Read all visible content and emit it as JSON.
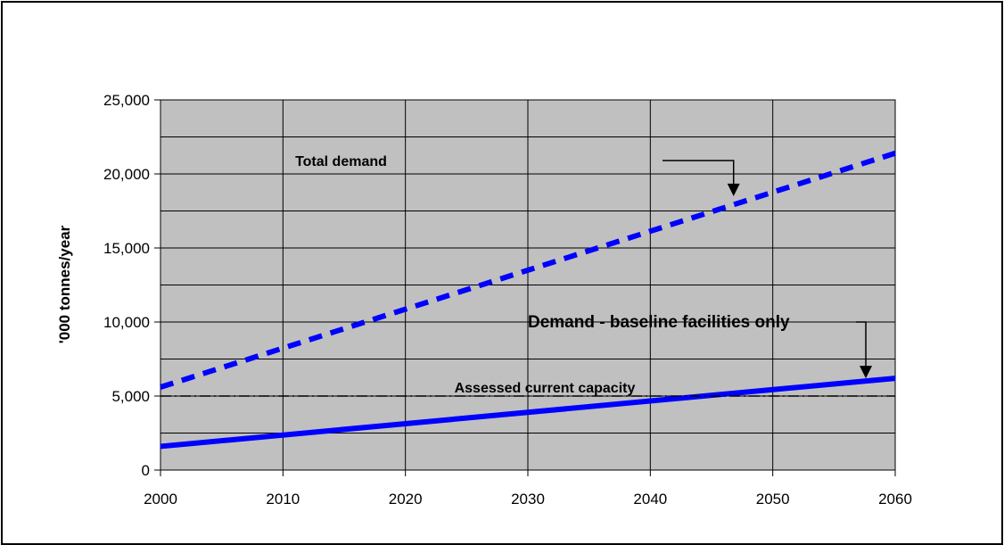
{
  "chart_data": {
    "type": "line",
    "title": "",
    "xlabel": "",
    "ylabel": "'000 tonnes/year",
    "xlim": [
      2000,
      2060
    ],
    "ylim": [
      0,
      25000
    ],
    "x_ticks": [
      2000,
      2010,
      2020,
      2030,
      2040,
      2050,
      2060
    ],
    "x_tick_labels": [
      "2000",
      "2010",
      "2020",
      "2030",
      "2040",
      "2050",
      "2060"
    ],
    "y_ticks": [
      0,
      5000,
      10000,
      15000,
      20000,
      25000
    ],
    "y_tick_labels": [
      "0",
      "5,000",
      "10,000",
      "15,000",
      "20,000",
      "25,000"
    ],
    "y_minor_step": 2500,
    "grid": true,
    "plot_background": "#c0c0c0",
    "series": [
      {
        "name": "Total demand",
        "style": "dashed",
        "color": "#0000ff",
        "x": [
          2000,
          2060
        ],
        "y": [
          5600,
          21400
        ]
      },
      {
        "name": "Demand - baseline facilities only",
        "style": "solid",
        "color": "#0000ff",
        "x": [
          2000,
          2060
        ],
        "y": [
          1600,
          6200
        ]
      },
      {
        "name": "Assessed current capacity",
        "style": "dash-dot",
        "color": "#000000",
        "x": [
          2000,
          2060
        ],
        "y": [
          5000,
          5000
        ]
      }
    ],
    "annotations": [
      {
        "text": "Total demand",
        "text_at": [
          2011,
          20900
        ],
        "leader_from": [
          2041,
          20900
        ],
        "elbow_at": [
          2046.8,
          20900
        ],
        "arrow_to": [
          2046.8,
          18500
        ]
      },
      {
        "text": "Demand - baseline facilities only",
        "text_at": [
          2030,
          10000
        ],
        "leader_from": [
          2056.8,
          10000
        ],
        "elbow_at": [
          2057.6,
          10000
        ],
        "arrow_to": [
          2057.6,
          6200
        ]
      },
      {
        "text": "Assessed current capacity",
        "text_at": [
          2024,
          5600
        ]
      }
    ]
  }
}
